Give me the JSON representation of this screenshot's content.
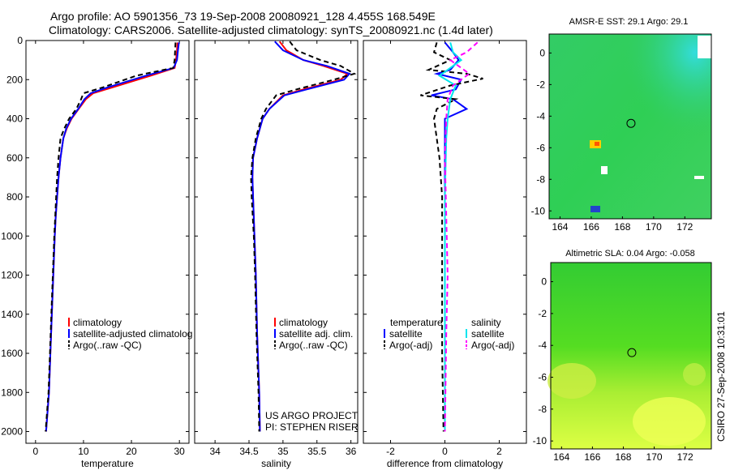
{
  "figure": {
    "title_line1": "Argo profile: AO 5901356_73 19-Sep-2008 20080921_128 4.455S 168.549E",
    "title_line2": "Climatology: CARS2006. Satellite-adjusted climatology: synTS_20080921.nc (1.4d later)",
    "credit": "CSIRO 27-Sep-2008 10:31:01",
    "project_line1": "US ARGO PROJECT",
    "project_line2": "PI: STEPHEN RISER"
  },
  "colors": {
    "climatology": "#ff0000",
    "satellite": "#0000ff",
    "argo": "#000000",
    "cyan": "#00e5ee",
    "magenta": "#ff00ff"
  },
  "depth_ticks": [
    "0",
    "200",
    "400",
    "600",
    "800",
    "1000",
    "1200",
    "1400",
    "1600",
    "1800",
    "2000"
  ],
  "chart_data": [
    {
      "type": "line",
      "xlabel": "temperature",
      "xlim": [
        -2,
        32
      ],
      "xticks": [
        "0",
        "10",
        "20",
        "30"
      ],
      "ylim": [
        0,
        2060
      ],
      "legend": [
        "climatology",
        "satellite-adjusted climatolog",
        "Argo(..raw -QC)"
      ],
      "series": [
        {
          "name": "climatology",
          "color": "#ff0000",
          "dash": "",
          "x": [
            29.6,
            29.5,
            29.3,
            29.0,
            24.0,
            16.0,
            12.0,
            10.5,
            9.0,
            7.5,
            6.5,
            5.8,
            5.2,
            4.8,
            4.5,
            4.2,
            4.0,
            3.7,
            3.4,
            3.1,
            2.8,
            2.5,
            2.2
          ],
          "y": [
            10,
            50,
            100,
            140,
            180,
            240,
            270,
            300,
            350,
            400,
            450,
            500,
            600,
            700,
            800,
            900,
            1000,
            1200,
            1400,
            1600,
            1800,
            1900,
            2000
          ]
        },
        {
          "name": "satellite-adjusted climatology",
          "color": "#0000ff",
          "dash": "",
          "x": [
            29.9,
            29.7,
            29.5,
            28.8,
            23.0,
            15.0,
            11.5,
            10.2,
            8.9,
            7.4,
            6.4,
            5.8,
            5.2,
            4.8,
            4.5,
            4.2,
            4.0,
            3.7,
            3.4,
            3.1,
            2.8,
            2.5,
            2.2
          ],
          "y": [
            10,
            50,
            100,
            140,
            180,
            240,
            270,
            300,
            350,
            400,
            450,
            500,
            600,
            700,
            800,
            900,
            1000,
            1200,
            1400,
            1600,
            1800,
            1900,
            2000
          ]
        },
        {
          "name": "Argo(..raw -QC)",
          "color": "#000000",
          "dash": "6,4",
          "x": [
            29.2,
            29.1,
            29.0,
            28.7,
            21.0,
            14.0,
            10.0,
            9.5,
            8.5,
            7.0,
            6.0,
            5.2,
            4.8,
            4.5,
            4.3,
            4.1,
            3.9,
            3.6,
            3.3,
            3.0,
            2.7,
            2.4,
            2.1
          ],
          "y": [
            10,
            50,
            100,
            140,
            180,
            240,
            270,
            300,
            350,
            400,
            450,
            500,
            600,
            700,
            800,
            900,
            1000,
            1200,
            1400,
            1600,
            1800,
            1900,
            2000
          ]
        }
      ]
    },
    {
      "type": "line",
      "xlabel": "salinity",
      "xlim": [
        33.7,
        36.1
      ],
      "xticks": [
        "34",
        "34.5",
        "35",
        "35.5",
        "36"
      ],
      "ylim": [
        0,
        2060
      ],
      "legend": [
        "climatology",
        "satellite adj. clim.",
        "Argo(..raw -QC)"
      ],
      "series": [
        {
          "name": "climatology",
          "color": "#ff0000",
          "dash": "",
          "x": [
            34.95,
            35.05,
            35.3,
            35.6,
            35.95,
            35.85,
            35.3,
            35.0,
            34.8,
            34.7,
            34.62,
            34.56,
            34.55,
            34.56,
            34.58,
            34.6,
            34.62,
            34.65,
            34.66
          ],
          "y": [
            5,
            50,
            100,
            130,
            170,
            200,
            250,
            280,
            350,
            400,
            500,
            600,
            700,
            800,
            1000,
            1200,
            1500,
            1800,
            2000
          ]
        },
        {
          "name": "satellite adj. clim.",
          "color": "#0000ff",
          "dash": "",
          "x": [
            34.88,
            35.0,
            35.3,
            35.65,
            35.98,
            35.9,
            35.35,
            35.02,
            34.8,
            34.7,
            34.62,
            34.56,
            34.55,
            34.56,
            34.58,
            34.6,
            34.62,
            34.65,
            34.66
          ],
          "y": [
            5,
            50,
            100,
            130,
            170,
            200,
            250,
            280,
            350,
            400,
            500,
            600,
            700,
            800,
            1000,
            1200,
            1500,
            1800,
            2000
          ]
        },
        {
          "name": "Argo(..raw -QC)",
          "color": "#000000",
          "dash": "6,4",
          "x": [
            35.1,
            35.2,
            35.55,
            35.85,
            36.05,
            35.75,
            35.2,
            34.9,
            34.75,
            34.68,
            34.6,
            34.55,
            34.53,
            34.54,
            34.57,
            34.59,
            34.61,
            34.64,
            34.65
          ],
          "y": [
            5,
            50,
            100,
            130,
            170,
            200,
            250,
            280,
            350,
            400,
            500,
            600,
            700,
            800,
            1000,
            1200,
            1500,
            1800,
            2000
          ]
        }
      ]
    },
    {
      "type": "line",
      "xlabel": "difference from climatology",
      "xlim": [
        -3.0,
        3.0
      ],
      "xticks": [
        "-2",
        "0",
        "2"
      ],
      "ylim": [
        0,
        2060
      ],
      "legend_left_title": "temperature",
      "legend_right_title": "salinity",
      "legend": [
        "satellite",
        "Argo(-adj)",
        "satellite",
        "Argo(-adj)"
      ],
      "series": [
        {
          "name": "temperature satellite",
          "color": "#0000ff",
          "dash": "",
          "x": [
            0.0,
            0.3,
            0.5,
            0.2,
            -0.3,
            0.6,
            0.4,
            -0.5,
            0.3,
            0.8,
            0.0,
            0.0,
            0.0,
            0.0,
            0.0,
            0.0
          ],
          "y": [
            10,
            60,
            100,
            150,
            170,
            200,
            250,
            280,
            300,
            350,
            400,
            600,
            800,
            1200,
            1600,
            2000
          ]
        },
        {
          "name": "temperature Argo(-adj)",
          "color": "#000000",
          "dash": "6,4",
          "x": [
            -0.3,
            -0.4,
            0.2,
            -0.6,
            0.8,
            1.4,
            0.2,
            -0.9,
            0.4,
            -0.3,
            -0.4,
            -0.2,
            -0.1,
            -0.1,
            -0.1,
            -0.05
          ],
          "y": [
            10,
            60,
            100,
            150,
            170,
            195,
            230,
            280,
            300,
            350,
            400,
            600,
            800,
            1200,
            1600,
            2000
          ]
        },
        {
          "name": "salinity satellite",
          "color": "#00e5ee",
          "dash": "",
          "x": [
            0.2,
            0.3,
            0.6,
            0.1,
            -0.2,
            0.4,
            0.2,
            0.1,
            0.05,
            0.0,
            0.0,
            0.0,
            0.0,
            0.0
          ],
          "y": [
            10,
            60,
            100,
            150,
            180,
            230,
            300,
            400,
            500,
            800,
            1200,
            1500,
            1800,
            2000
          ]
        },
        {
          "name": "salinity Argo(-adj)",
          "color": "#ff00ff",
          "dash": "6,4",
          "x": [
            1.2,
            0.8,
            0.2,
            0.9,
            0.3,
            0.1,
            0.05,
            0.0,
            0.05,
            0.1,
            0.05,
            0.0
          ],
          "y": [
            10,
            60,
            100,
            170,
            230,
            300,
            400,
            600,
            900,
            1200,
            1500,
            2000
          ]
        }
      ]
    },
    {
      "type": "heatmap",
      "title": "AMSR-E SST: 29.1 Argo: 29.1",
      "xlim": [
        163.3,
        173.7
      ],
      "ylim": [
        -10.5,
        1.2
      ],
      "xticks": [
        "164",
        "166",
        "168",
        "170",
        "172"
      ],
      "yticks": [
        "0",
        "-2",
        "-4",
        "-6",
        "-8",
        "-10"
      ],
      "argo_position": [
        168.549,
        -4.455
      ]
    },
    {
      "type": "heatmap",
      "title": "Altimetric SLA: 0.04 Argo: -0.058",
      "xlim": [
        163.3,
        173.7
      ],
      "ylim": [
        -10.5,
        1.2
      ],
      "xticks": [
        "164",
        "166",
        "168",
        "170",
        "172"
      ],
      "yticks": [
        "0",
        "-2",
        "-4",
        "-6",
        "-8",
        "-10"
      ],
      "argo_position": [
        168.549,
        -4.455
      ]
    }
  ]
}
